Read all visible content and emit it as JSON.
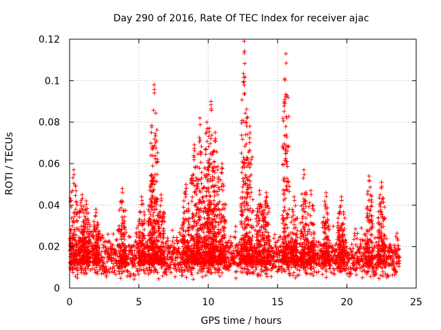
{
  "chart_data": {
    "type": "scatter",
    "title": "Day 290 of 2016, Rate Of TEC Index for receiver ajac",
    "xlabel": "GPS time / hours",
    "ylabel": "ROTI / TECUs",
    "xlim": [
      0,
      25
    ],
    "ylim": [
      0,
      0.12
    ],
    "x_ticks": [
      0,
      5,
      10,
      15,
      20,
      25
    ],
    "x_tick_labels": [
      "0",
      "5",
      "10",
      "15",
      "20",
      "25"
    ],
    "y_ticks": [
      0,
      0.02,
      0.04,
      0.06,
      0.08,
      0.1,
      0.12
    ],
    "y_tick_labels": [
      "0",
      "0.02",
      "0.04",
      "0.06",
      "0.08",
      "0.1",
      "0.12"
    ],
    "grid": true,
    "marker": "+",
    "series": [
      {
        "name": "ROTI",
        "color": "#ff0000",
        "x_range": [
          0,
          23.8
        ],
        "baseline_level": 0.012,
        "baseline_spread": 0.008,
        "bursts": [
          {
            "x": 0.3,
            "peak": 0.057
          },
          {
            "x": 0.9,
            "peak": 0.045
          },
          {
            "x": 1.2,
            "peak": 0.042
          },
          {
            "x": 1.9,
            "peak": 0.038
          },
          {
            "x": 3.8,
            "peak": 0.048
          },
          {
            "x": 5.2,
            "peak": 0.044
          },
          {
            "x": 5.9,
            "peak": 0.054
          },
          {
            "x": 6.1,
            "peak": 0.098
          },
          {
            "x": 6.6,
            "peak": 0.045
          },
          {
            "x": 8.4,
            "peak": 0.05
          },
          {
            "x": 9.0,
            "peak": 0.069
          },
          {
            "x": 9.4,
            "peak": 0.082
          },
          {
            "x": 9.9,
            "peak": 0.08
          },
          {
            "x": 10.2,
            "peak": 0.09
          },
          {
            "x": 10.5,
            "peak": 0.075
          },
          {
            "x": 11.0,
            "peak": 0.06
          },
          {
            "x": 12.6,
            "peak": 0.119
          },
          {
            "x": 13.0,
            "peak": 0.078
          },
          {
            "x": 13.7,
            "peak": 0.047
          },
          {
            "x": 14.2,
            "peak": 0.046
          },
          {
            "x": 15.6,
            "peak": 0.113
          },
          {
            "x": 16.2,
            "peak": 0.044
          },
          {
            "x": 16.9,
            "peak": 0.057
          },
          {
            "x": 17.4,
            "peak": 0.047
          },
          {
            "x": 18.5,
            "peak": 0.046
          },
          {
            "x": 19.6,
            "peak": 0.044
          },
          {
            "x": 21.6,
            "peak": 0.054
          },
          {
            "x": 22.5,
            "peak": 0.051
          }
        ]
      }
    ]
  }
}
